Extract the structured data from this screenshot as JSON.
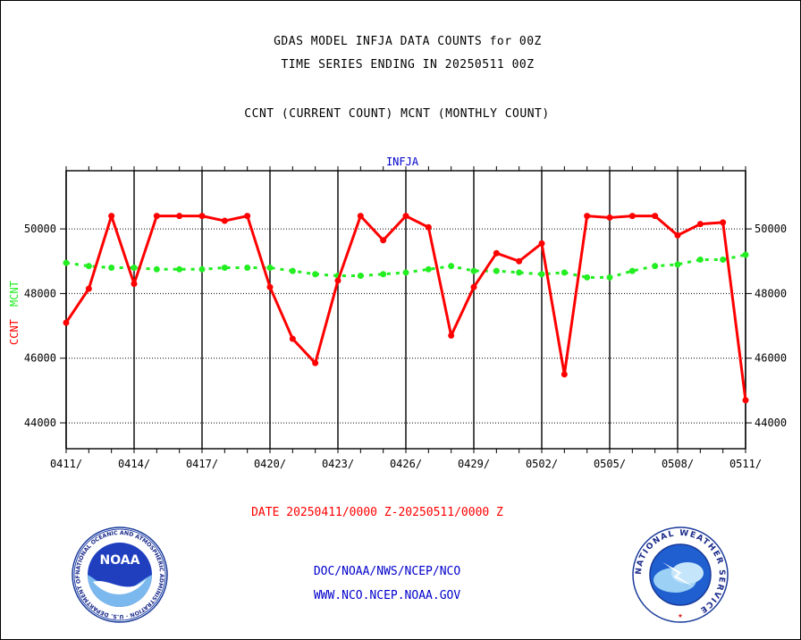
{
  "header": {
    "line1": "GDAS MODEL INFJA DATA COUNTS for 00Z",
    "line2": "TIME SERIES ENDING IN 20250511 00Z",
    "line3": "CCNT (CURRENT COUNT) MCNT (MONTHLY COUNT)"
  },
  "footer": {
    "date_range": "DATE 20250411/0000 Z-20250511/0000 Z",
    "link1": "DOC/NOAA/NWS/NCEP/NCO",
    "link2": "WWW.NCO.NCEP.NOAA.GOV",
    "noaa_logo_text": "NOAA",
    "noaa_ring_text": "NATIONAL OCEANIC AND ATMOSPHERIC ADMINISTRATION · U.S. DEPARTMENT OF COMMERCE",
    "nws_ring_text": "NATIONAL WEATHER SERVICE"
  },
  "colors": {
    "ccnt": "#ff0000",
    "mcnt": "#22ee22",
    "title": "#0000cc"
  },
  "chart_data": {
    "type": "line",
    "title": "INFJA",
    "ylabel_ccnt": "CCNT",
    "ylabel_mcnt": "MCNT",
    "xlim": [
      0,
      30
    ],
    "ylim": [
      43200,
      51800
    ],
    "yticks": [
      44000,
      46000,
      48000,
      50000
    ],
    "ytick_labels": [
      "44000",
      "46000",
      "48000",
      "50000"
    ],
    "xticks": [
      0,
      3,
      6,
      9,
      12,
      15,
      18,
      21,
      24,
      27,
      30
    ],
    "xtick_labels": [
      "0411/",
      "0414/",
      "0417/",
      "0420/",
      "0423/",
      "0426/",
      "0429/",
      "0502/",
      "0505/",
      "0508/",
      "0511/"
    ],
    "grid": true,
    "x": [
      0,
      1,
      2,
      3,
      4,
      5,
      6,
      7,
      8,
      9,
      10,
      11,
      12,
      13,
      14,
      15,
      16,
      17,
      18,
      19,
      20,
      21,
      22,
      23,
      24,
      25,
      26,
      27,
      28,
      29,
      30
    ],
    "series": [
      {
        "name": "CCNT",
        "color": "#ff0000",
        "values": [
          47100,
          48150,
          50400,
          48300,
          50400,
          50400,
          50400,
          50250,
          50400,
          48200,
          46600,
          45850,
          48400,
          50400,
          49650,
          50400,
          50050,
          46700,
          48200,
          49250,
          49000,
          49550,
          45500,
          50400,
          50350,
          50400,
          50400,
          49800,
          50150,
          50200,
          44700
        ]
      },
      {
        "name": "MCNT",
        "color": "#22ee22",
        "values": [
          48950,
          48850,
          48800,
          48800,
          48750,
          48750,
          48750,
          48800,
          48800,
          48800,
          48700,
          48600,
          48550,
          48550,
          48600,
          48650,
          48750,
          48850,
          48700,
          48700,
          48650,
          48600,
          48650,
          48500,
          48500,
          48700,
          48850,
          48900,
          49050,
          49050,
          49200
        ]
      }
    ]
  }
}
